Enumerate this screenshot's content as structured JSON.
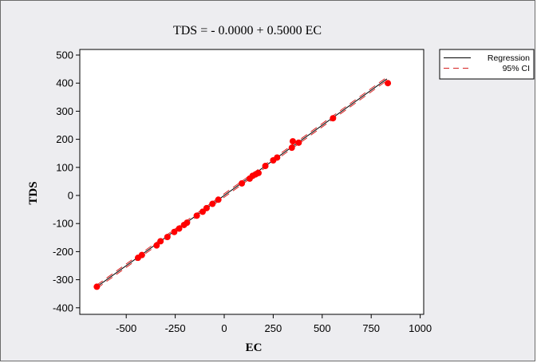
{
  "chart_data": {
    "type": "scatter",
    "title": "TDS = - 0.0000 + 0.5000 EC",
    "xlabel": "EC",
    "ylabel": "TDS",
    "xlim": [
      -750,
      1000
    ],
    "ylim": [
      -420,
      510
    ],
    "xticks": [
      -500,
      -250,
      0,
      250,
      500,
      750,
      1000
    ],
    "yticks": [
      500,
      400,
      300,
      200,
      100,
      0,
      -100,
      -200,
      -300,
      -400
    ],
    "regression": {
      "intercept": 0.0,
      "slope": 0.5,
      "x_range": [
        -650,
        830
      ]
    },
    "legend": {
      "placement": "top-right",
      "entries": [
        {
          "label": "Regression",
          "style": "solid",
          "color": "#000000"
        },
        {
          "label": "95% CI",
          "style": "dashed",
          "color": "#d62020"
        }
      ]
    },
    "point_color": "#ff0000",
    "points": [
      {
        "x": -650,
        "y": -325
      },
      {
        "x": -440,
        "y": -222
      },
      {
        "x": -420,
        "y": -212
      },
      {
        "x": -345,
        "y": -178
      },
      {
        "x": -325,
        "y": -163
      },
      {
        "x": -290,
        "y": -148
      },
      {
        "x": -255,
        "y": -130
      },
      {
        "x": -230,
        "y": -118
      },
      {
        "x": -205,
        "y": -105
      },
      {
        "x": -190,
        "y": -97
      },
      {
        "x": -140,
        "y": -72
      },
      {
        "x": -110,
        "y": -58
      },
      {
        "x": -90,
        "y": -45
      },
      {
        "x": -60,
        "y": -30
      },
      {
        "x": -30,
        "y": -15
      },
      {
        "x": 90,
        "y": 43
      },
      {
        "x": 130,
        "y": 60
      },
      {
        "x": 145,
        "y": 70
      },
      {
        "x": 160,
        "y": 75
      },
      {
        "x": 175,
        "y": 80
      },
      {
        "x": 210,
        "y": 105
      },
      {
        "x": 250,
        "y": 125
      },
      {
        "x": 270,
        "y": 135
      },
      {
        "x": 345,
        "y": 170
      },
      {
        "x": 350,
        "y": 193
      },
      {
        "x": 380,
        "y": 188
      },
      {
        "x": 555,
        "y": 275
      },
      {
        "x": 835,
        "y": 400
      }
    ]
  }
}
